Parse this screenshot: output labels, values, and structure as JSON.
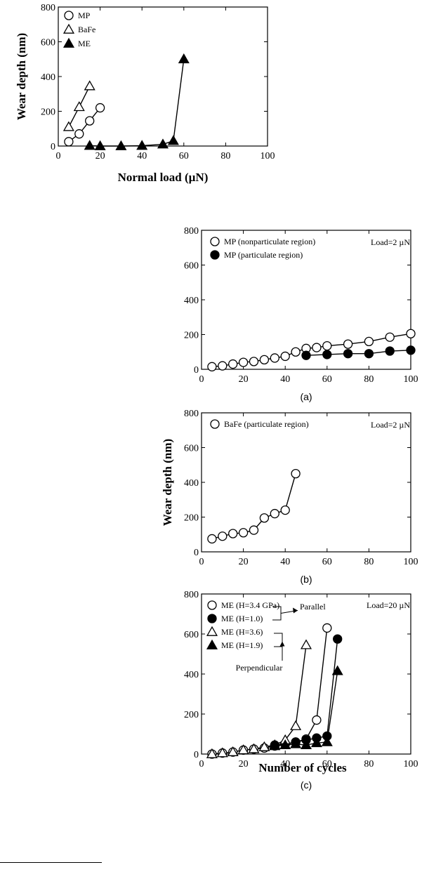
{
  "chart_data": [
    {
      "id": "top",
      "type": "scatter",
      "xlabel": "Normal load (µN)",
      "ylabel": "Wear depth (nm)",
      "xlim": [
        0,
        100
      ],
      "ylim": [
        0,
        800
      ],
      "xticks": [
        0,
        20,
        40,
        60,
        80,
        100
      ],
      "yticks": [
        0,
        200,
        400,
        600,
        800
      ],
      "grid": false,
      "legend_position": "top-left",
      "series": [
        {
          "name": "MP",
          "marker": "circle-open",
          "x": [
            5,
            10,
            15,
            20
          ],
          "y": [
            25,
            70,
            145,
            220
          ]
        },
        {
          "name": "BaFe",
          "marker": "triangle-open",
          "x": [
            5,
            10,
            15
          ],
          "y": [
            110,
            225,
            345
          ]
        },
        {
          "name": "ME",
          "marker": "triangle-filled",
          "x": [
            15,
            20,
            30,
            40,
            50,
            55,
            60
          ],
          "y": [
            2,
            0,
            0,
            2,
            10,
            30,
            500
          ]
        }
      ]
    },
    {
      "id": "a",
      "type": "scatter",
      "caption": "(a)",
      "xlim": [
        0,
        100
      ],
      "ylim": [
        0,
        800
      ],
      "xticks": [
        0,
        20,
        40,
        60,
        80,
        100
      ],
      "yticks": [
        0,
        200,
        400,
        600,
        800
      ],
      "grid": false,
      "legend_position": "top-left",
      "annotation": "Load=2 µN",
      "series": [
        {
          "name": "MP (nonparticulate region)",
          "marker": "circle-open",
          "x": [
            5,
            10,
            15,
            20,
            25,
            30,
            35,
            40,
            45,
            50,
            55,
            60,
            70,
            80,
            90,
            100
          ],
          "y": [
            15,
            20,
            30,
            40,
            45,
            55,
            65,
            75,
            100,
            120,
            125,
            135,
            145,
            160,
            185,
            205
          ]
        },
        {
          "name": "MP (particulate region)",
          "marker": "circle-filled",
          "x": [
            50,
            60,
            70,
            80,
            90,
            100
          ],
          "y": [
            80,
            85,
            90,
            90,
            105,
            110
          ]
        }
      ]
    },
    {
      "id": "b",
      "type": "scatter",
      "caption": "(b)",
      "ylabel": "Wear depth (nm)",
      "xlim": [
        0,
        100
      ],
      "ylim": [
        0,
        800
      ],
      "xticks": [
        0,
        20,
        40,
        60,
        80,
        100
      ],
      "yticks": [
        0,
        200,
        400,
        600,
        800
      ],
      "grid": false,
      "legend_position": "top-left",
      "annotation": "Load=2 µN",
      "series": [
        {
          "name": "BaFe (particulate region)",
          "marker": "circle-open",
          "x": [
            5,
            10,
            15,
            20,
            25,
            30,
            35,
            40,
            45
          ],
          "y": [
            75,
            90,
            105,
            110,
            125,
            195,
            220,
            240,
            450
          ]
        }
      ]
    },
    {
      "id": "c",
      "type": "scatter",
      "caption": "(c)",
      "xlabel": "Number of cycles",
      "xlim": [
        0,
        100
      ],
      "ylim": [
        0,
        800
      ],
      "xticks": [
        0,
        20,
        40,
        60,
        80,
        100
      ],
      "yticks": [
        0,
        200,
        400,
        600,
        800
      ],
      "grid": false,
      "legend_position": "top-left",
      "annotation": "Load=20 µN",
      "group_labels": {
        "parallel": "Parallel",
        "perpendicular": "Perpendicular"
      },
      "series": [
        {
          "name": "ME (H=3.4 GPa)",
          "marker": "circle-open",
          "x": [
            5,
            10,
            15,
            20,
            25,
            30,
            35,
            40,
            45,
            50,
            55,
            60
          ],
          "y": [
            0,
            5,
            10,
            20,
            25,
            30,
            40,
            50,
            60,
            75,
            170,
            630
          ]
        },
        {
          "name": "ME (H=1.0)",
          "marker": "circle-filled",
          "x": [
            35,
            40,
            45,
            50,
            55,
            60,
            65
          ],
          "y": [
            45,
            50,
            60,
            70,
            80,
            90,
            575
          ]
        },
        {
          "name": "ME (H=3.6)",
          "marker": "triangle-open",
          "x": [
            5,
            10,
            15,
            20,
            25,
            30,
            35,
            40,
            45,
            50
          ],
          "y": [
            0,
            5,
            10,
            20,
            25,
            35,
            45,
            70,
            140,
            545
          ]
        },
        {
          "name": "ME (H=1.9)",
          "marker": "triangle-filled",
          "x": [
            35,
            40,
            45,
            50,
            55,
            60,
            65
          ],
          "y": [
            40,
            45,
            50,
            45,
            55,
            60,
            415
          ]
        }
      ]
    }
  ]
}
